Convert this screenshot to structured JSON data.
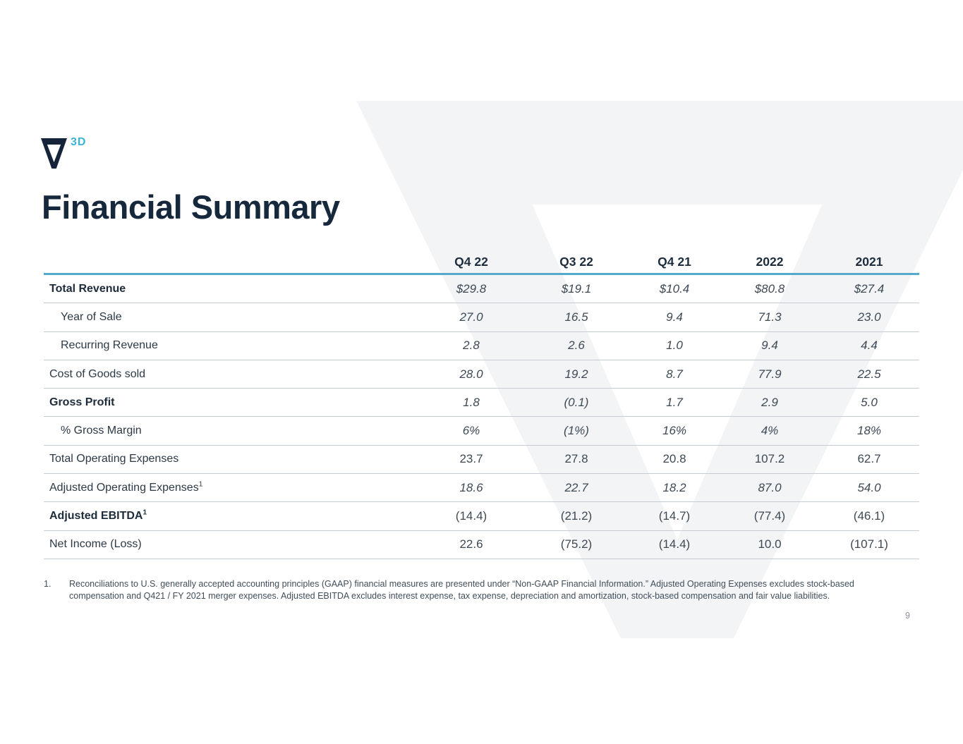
{
  "logo": {
    "icon": "v-logo-icon",
    "superscript": "3D"
  },
  "page_title": "Financial Summary",
  "table": {
    "columns": [
      "Q4 22",
      "Q3 22",
      "Q4 21",
      "2022",
      "2021"
    ],
    "rows": [
      {
        "label": "Total Revenue",
        "sup": "",
        "bold": true,
        "indent": false,
        "italic": true,
        "values": [
          "$29.8",
          "$19.1",
          "$10.4",
          "$80.8",
          "$27.4"
        ]
      },
      {
        "label": "Year of Sale",
        "sup": "",
        "bold": false,
        "indent": true,
        "italic": true,
        "values": [
          "27.0",
          "16.5",
          "9.4",
          "71.3",
          "23.0"
        ]
      },
      {
        "label": "Recurring Revenue",
        "sup": "",
        "bold": false,
        "indent": true,
        "italic": true,
        "values": [
          "2.8",
          "2.6",
          "1.0",
          "9.4",
          "4.4"
        ]
      },
      {
        "label": "Cost of Goods sold",
        "sup": "",
        "bold": false,
        "indent": false,
        "italic": true,
        "values": [
          "28.0",
          "19.2",
          "8.7",
          "77.9",
          "22.5"
        ]
      },
      {
        "label": "Gross Profit",
        "sup": "",
        "bold": true,
        "indent": false,
        "italic": true,
        "values": [
          "1.8",
          "(0.1)",
          "1.7",
          "2.9",
          "5.0"
        ]
      },
      {
        "label": "% Gross Margin",
        "sup": "",
        "bold": false,
        "indent": true,
        "italic": true,
        "values": [
          "6%",
          "(1%)",
          "16%",
          "4%",
          "18%"
        ]
      },
      {
        "label": "Total Operating Expenses",
        "sup": "",
        "bold": false,
        "indent": false,
        "italic": false,
        "values": [
          "23.7",
          "27.8",
          "20.8",
          "107.2",
          "62.7"
        ]
      },
      {
        "label": "Adjusted Operating Expenses",
        "sup": "1",
        "bold": false,
        "indent": false,
        "italic": true,
        "values": [
          "18.6",
          "22.7",
          "18.2",
          "87.0",
          "54.0"
        ]
      },
      {
        "label": "Adjusted EBITDA",
        "sup": "1",
        "bold": true,
        "indent": false,
        "italic": false,
        "values": [
          "(14.4)",
          "(21.2)",
          "(14.7)",
          "(77.4)",
          "(46.1)"
        ]
      },
      {
        "label": "Net Income (Loss)",
        "sup": "",
        "bold": false,
        "indent": false,
        "italic": false,
        "values": [
          "22.6",
          "(75.2)",
          "(14.4)",
          "10.0",
          "(107.1)"
        ]
      }
    ]
  },
  "footnote": {
    "marker": "1.",
    "text": "Reconciliations to U.S. generally accepted accounting principles (GAAP) financial measures are presented under “Non-GAAP Financial Information.”  Adjusted Operating Expenses excludes stock-based compensation and Q421 / FY 2021 merger expenses.  Adjusted EBITDA excludes interest expense, tax expense, depreciation and amortization, stock-based compensation and fair value liabilities."
  },
  "page_number": "9",
  "colors": {
    "brand_navy": "#16293c",
    "brand_light_blue": "#3cb4da",
    "header_rule_blue": "#55a9cd",
    "row_rule_gray": "#c5cbd1",
    "watermark_gray": "#f2f4f6",
    "value_text": "#3e4954"
  }
}
